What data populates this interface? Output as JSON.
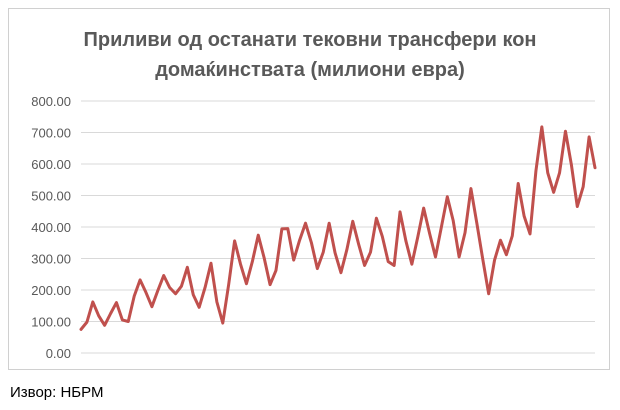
{
  "chart_data": {
    "type": "line",
    "title_line1": "Приливи од останати тековни трансфери кон",
    "title_line2": "домаќинствата (милиони евра)",
    "xlabel": "",
    "ylabel": "",
    "ylim": [
      0,
      800
    ],
    "y_ticks": [
      "0.00",
      "100.00",
      "200.00",
      "300.00",
      "400.00",
      "500.00",
      "600.00",
      "700.00",
      "800.00"
    ],
    "grid": true,
    "legend": "none",
    "line_color": "#c0504d",
    "series": [
      {
        "values": [
          75,
          98,
          162,
          118,
          88,
          125,
          160,
          105,
          100,
          180,
          232,
          192,
          147,
          198,
          246,
          208,
          188,
          212,
          272,
          185,
          145,
          208,
          285,
          162,
          95,
          218,
          356,
          282,
          220,
          290,
          374,
          302,
          217,
          262,
          394,
          395,
          295,
          358,
          412,
          350,
          268,
          320,
          412,
          318,
          255,
          328,
          418,
          345,
          278,
          320,
          428,
          370,
          290,
          278,
          448,
          355,
          282,
          368,
          460,
          380,
          305,
          400,
          496,
          420,
          305,
          382,
          522,
          412,
          298,
          188,
          295,
          358,
          312,
          372,
          538,
          435,
          378,
          578,
          718,
          572,
          510,
          572,
          704,
          598,
          465,
          528,
          686,
          588
        ]
      }
    ]
  },
  "source_text": "Извор: НБРМ"
}
